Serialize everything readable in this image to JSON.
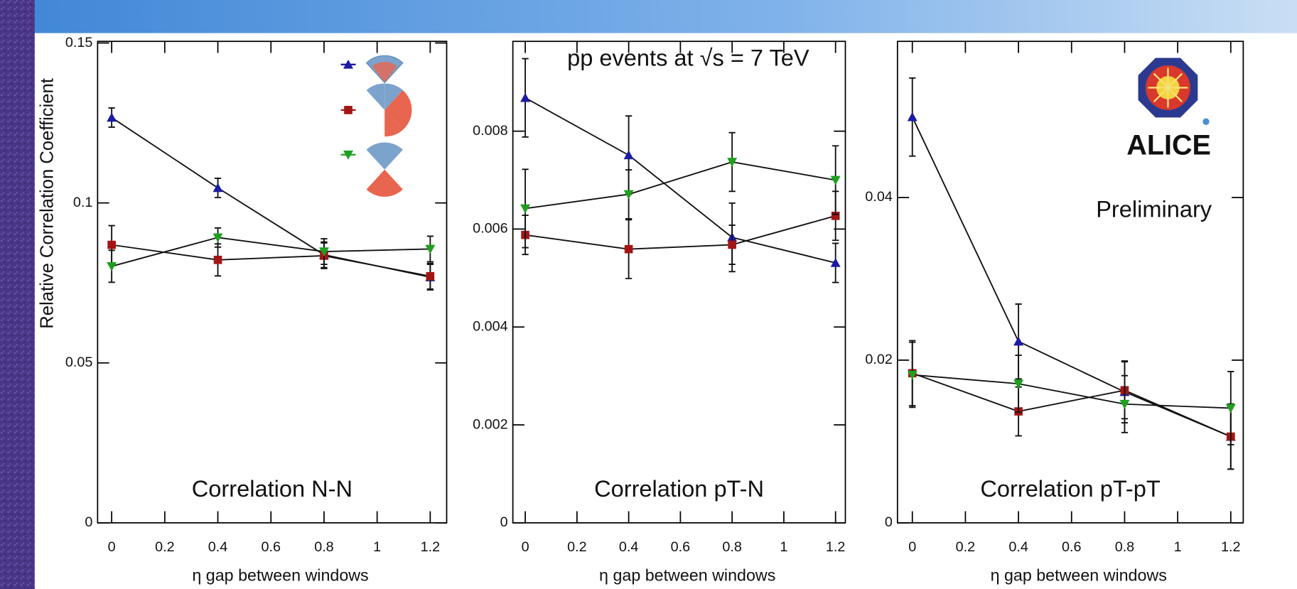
{
  "chart_data": [
    {
      "type": "line",
      "title": "Correlation N-N",
      "xlabel": "η gap between windows",
      "ylabel": "Relative Correlation Coefficient",
      "x": [
        0,
        0.4,
        0.8,
        1.2
      ],
      "xlim": [
        -0.053,
        1.262
      ],
      "ylim": [
        0,
        0.15
      ],
      "xticks": [
        0,
        0.2,
        0.4,
        0.6,
        0.8,
        1,
        1.2
      ],
      "yticks": [
        0,
        0.05,
        0.1,
        0.15
      ],
      "series": [
        {
          "color": "#1b1ba3",
          "marker": "triangle-up",
          "values": [
            0.1267,
            0.1047,
            0.0838,
            0.0768
          ],
          "errors": [
            0.003,
            0.003,
            0.004,
            0.004
          ]
        },
        {
          "color": "#a31515",
          "marker": "square",
          "values": [
            0.0869,
            0.0822,
            0.0835,
            0.0771
          ],
          "errors": [
            0.006,
            0.005,
            0.004,
            0.004
          ]
        },
        {
          "color": "#1f9f1f",
          "marker": "triangle-down",
          "values": [
            0.0802,
            0.0892,
            0.0848,
            0.0856
          ],
          "errors": [
            0.005,
            0.003,
            0.004,
            0.004
          ]
        }
      ]
    },
    {
      "type": "line",
      "title": "Correlation pT-N",
      "xlabel": "η gap between windows",
      "annotations": [
        "pp events at √s = 7 TeV"
      ],
      "x": [
        0,
        0.4,
        0.8,
        1.2
      ],
      "xlim": [
        -0.048,
        1.238
      ],
      "ylim": [
        0,
        0.0098
      ],
      "xticks": [
        0,
        0.2,
        0.4,
        0.6,
        0.8,
        1,
        1.2
      ],
      "yticks": [
        0,
        0.002,
        0.004,
        0.006,
        0.008
      ],
      "series": [
        {
          "color": "#1b1ba3",
          "marker": "triangle-up",
          "values": [
            0.00868,
            0.00751,
            0.00583,
            0.00531
          ],
          "errors": [
            0.0008,
            0.0008,
            0.0007,
            0.0004
          ]
        },
        {
          "color": "#a31515",
          "marker": "square",
          "values": [
            0.00588,
            0.00559,
            0.00568,
            0.00627
          ],
          "errors": [
            0.0004,
            0.0006,
            0.0004,
            0.0005
          ]
        },
        {
          "color": "#1f9f1f",
          "marker": "triangle-down",
          "values": [
            0.00642,
            0.00671,
            0.00737,
            0.007
          ],
          "errors": [
            0.0008,
            0.0005,
            0.0006,
            0.0007
          ]
        }
      ]
    },
    {
      "type": "line",
      "title": "Correlation pT-pT",
      "xlabel": "η gap between windows",
      "annotations": [
        "ALICE",
        "Preliminary"
      ],
      "x": [
        0,
        0.4,
        0.8,
        1.2
      ],
      "xlim": [
        -0.056,
        1.247
      ],
      "ylim": [
        0,
        0.059
      ],
      "xticks": [
        0,
        0.2,
        0.4,
        0.6,
        0.8,
        1,
        1.2
      ],
      "yticks": [
        0,
        0.02,
        0.04
      ],
      "series": [
        {
          "color": "#1b1ba3",
          "marker": "triangle-up",
          "values": [
            0.0499,
            0.0223,
            0.0161,
            0.0106
          ],
          "errors": [
            0.0048,
            0.0046,
            0.0038,
            0.004
          ]
        },
        {
          "color": "#a31515",
          "marker": "square",
          "values": [
            0.0184,
            0.0137,
            0.0163,
            0.0106
          ],
          "errors": [
            0.004,
            0.003,
            0.0035,
            0.004
          ]
        },
        {
          "color": "#1f9f1f",
          "marker": "triangle-down",
          "values": [
            0.0182,
            0.0171,
            0.0146,
            0.0141
          ],
          "errors": [
            0.004,
            0.0035,
            0.0035,
            0.0045
          ]
        }
      ]
    }
  ]
}
